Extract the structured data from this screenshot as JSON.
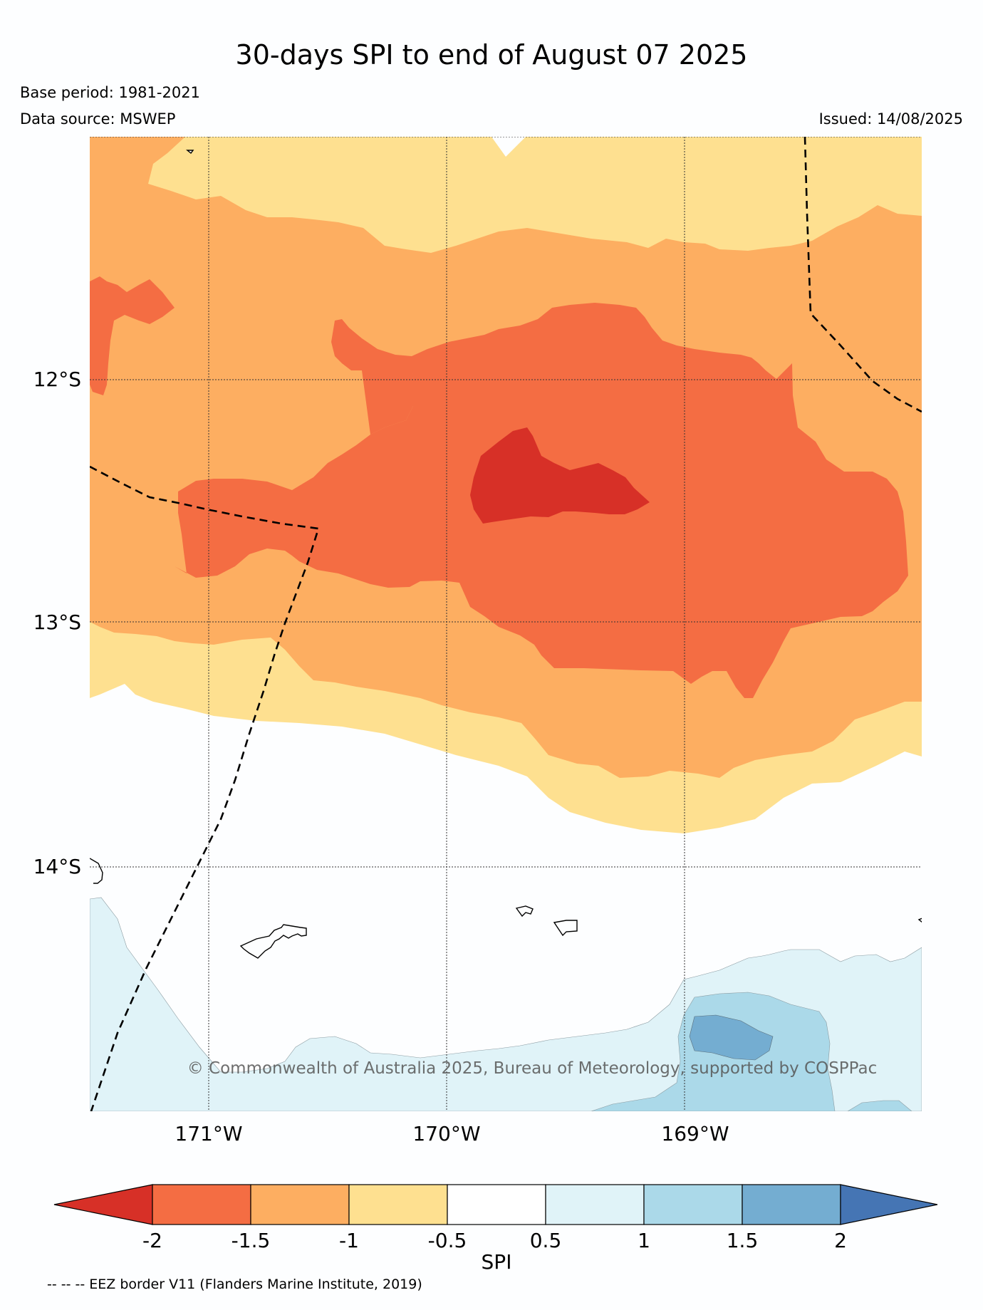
{
  "header": {
    "title": "30-days SPI to end of August 07 2025",
    "base_period": "Base period: 1981-2021",
    "data_source": "Data source: MSWEP",
    "issued": "Issued: 14/08/2025"
  },
  "map": {
    "lat_labels": [
      "12°S",
      "13°S",
      "14°S"
    ],
    "lon_labels": [
      "171°W",
      "170°W",
      "169°W"
    ],
    "copyright": "© Commonwealth of Australia 2025, Bureau of Meteorology, supported by COSPPac",
    "colors": {
      "lt_-2": "#d73027",
      "-2_-1.5": "#f46d43",
      "-1.5_-1": "#fdae61",
      "-1_-0.5": "#fee090",
      "-0.5_0.5": "#ffffff",
      "0.5_1": "#e0f3f8",
      "1_1.5": "#abd9e9",
      "1.5_2": "#74add1",
      "gt_2": "#4575b4"
    }
  },
  "colorbar": {
    "label": "SPI",
    "ticks": [
      "-2",
      "-1.5",
      "-1",
      "-0.5",
      "0.5",
      "1",
      "1.5",
      "2"
    ],
    "colors": [
      "#d73027",
      "#f46d43",
      "#fdae61",
      "#fee090",
      "#ffffff",
      "#e0f3f8",
      "#abd9e9",
      "#74add1",
      "#4575b4"
    ]
  },
  "footer": {
    "legend_note": "-- -- -- EEZ border V11 (Flanders Marine Institute, 2019)"
  }
}
